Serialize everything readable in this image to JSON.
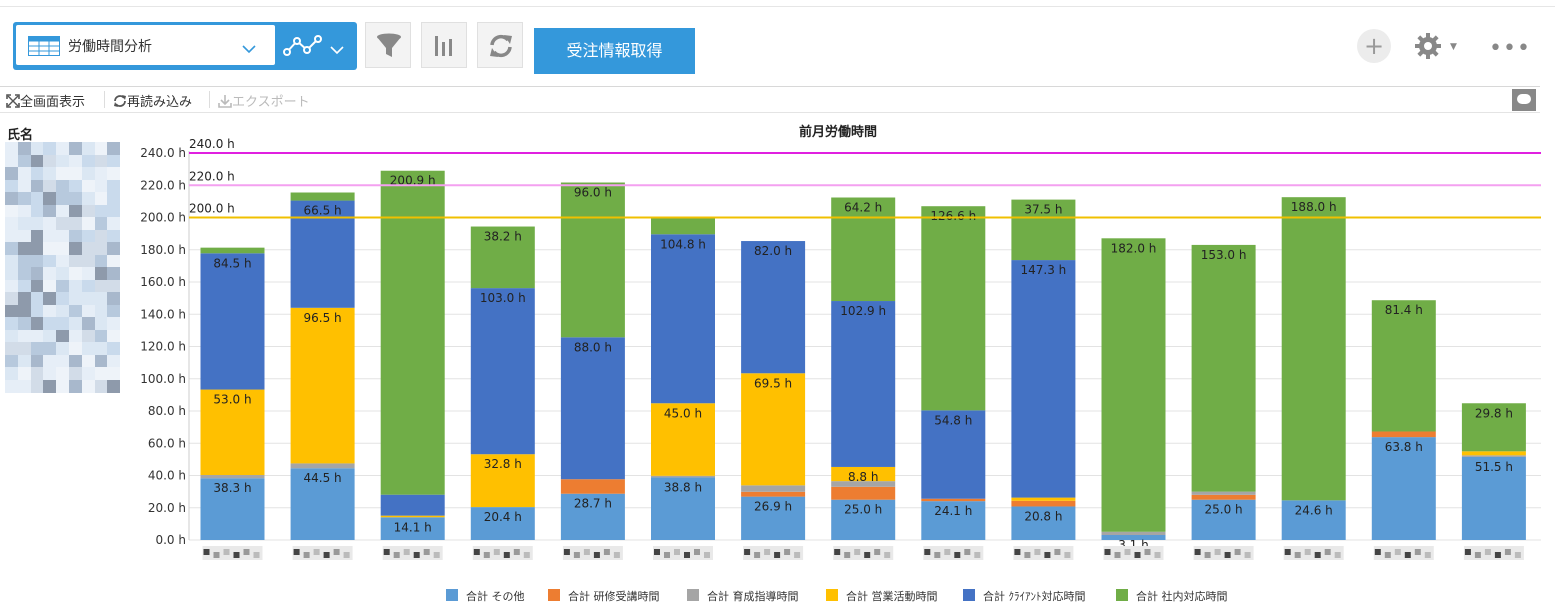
{
  "toolbar": {
    "view_name": "労働時間分析",
    "fetch_label": "受注情報取得",
    "plus_label": "+",
    "more_label": "•••"
  },
  "subbar": {
    "fullscreen_label": "全画面表示",
    "reload_label": "再読み込み",
    "export_label": "エクスポート"
  },
  "table": {
    "name_header": "氏名"
  },
  "colors": {
    "accent": "#3498db",
    "その他": "#5b9bd5",
    "研修受講時間": "#ed7d31",
    "育成指導時間": "#a5a5a5",
    "営業活動時間": "#ffc000",
    "クライアント対応時間": "#4472c4",
    "社内対応時間": "#70ad47",
    "line240": "#e020e0",
    "line220": "#f4a0f0",
    "line200": "#f0c000"
  },
  "chart_data": {
    "type": "bar",
    "stacked": true,
    "title": "前月労働時間",
    "ylim": [
      0,
      240
    ],
    "yticks": [
      "0.0 h",
      "20.0 h",
      "40.0 h",
      "60.0 h",
      "80.0 h",
      "100.0 h",
      "120.0 h",
      "140.0 h",
      "160.0 h",
      "180.0 h",
      "200.0 h",
      "220.0 h",
      "240.0 h"
    ],
    "grid": true,
    "legend_position": "bottom",
    "categories": [
      "",
      "",
      "",
      "",
      "",
      "",
      "",
      "",
      "",
      "",
      "",
      "",
      "",
      "",
      ""
    ],
    "series": [
      {
        "name": "合計 その他",
        "color": "#5b9bd5",
        "values": [
          38.3,
          44.5,
          14.1,
          20.4,
          28.7,
          38.8,
          26.9,
          25.0,
          24.1,
          20.8,
          3.1,
          25.0,
          24.6,
          63.8,
          51.5
        ],
        "labels": [
          "38.3 h",
          "44.5 h",
          "14.1 h",
          "20.4 h",
          "28.7 h",
          "38.8 h",
          "26.9 h",
          "25.0 h",
          "24.1 h",
          "20.8 h",
          "3.1 h",
          "25.0 h",
          "24.6 h",
          "63.8 h",
          "51.5 h"
        ]
      },
      {
        "name": "合計 研修受講時間",
        "color": "#ed7d31",
        "values": [
          0,
          0,
          0,
          0,
          9,
          0,
          3,
          8,
          1.5,
          3.5,
          0,
          3,
          0,
          3.5,
          0
        ],
        "labels": []
      },
      {
        "name": "合計 育成指導時間",
        "color": "#a5a5a5",
        "values": [
          2,
          3,
          0,
          0,
          0,
          1,
          4,
          3.5,
          0,
          0,
          2,
          2,
          0,
          0,
          1
        ],
        "labels": []
      },
      {
        "name": "合計 営業活動時間",
        "color": "#ffc000",
        "values": [
          53.0,
          96.5,
          1,
          32.8,
          0,
          45.0,
          69.5,
          8.8,
          0,
          2,
          0,
          0,
          0,
          0,
          2.5
        ],
        "labels": [
          "53.0 h",
          "96.5 h",
          "",
          "32.8 h",
          "",
          "45.0 h",
          "69.5 h",
          "8.8 h",
          "",
          "",
          "",
          "",
          "",
          "",
          ""
        ]
      },
      {
        "name": "合計 ｸﾗｲｱﾝﾄ対応時間",
        "color": "#4472c4",
        "values": [
          84.5,
          66.5,
          13,
          103.0,
          88.0,
          104.8,
          82.0,
          102.9,
          54.8,
          147.3,
          0,
          0,
          0,
          0,
          0
        ],
        "labels": [
          "84.5 h",
          "66.5 h",
          "",
          "103.0 h",
          "88.0 h",
          "104.8 h",
          "82.0 h",
          "102.9 h",
          "54.8 h",
          "147.3 h",
          "",
          "",
          "",
          "",
          ""
        ]
      },
      {
        "name": "合計 社内対応時間",
        "color": "#70ad47",
        "values": [
          3.5,
          5,
          200.9,
          38.2,
          96.0,
          10,
          0,
          64.2,
          126.6,
          37.5,
          182.0,
          153.0,
          188.0,
          81.4,
          29.8
        ],
        "labels": [
          "",
          "",
          "200.9 h",
          "38.2 h",
          "96.0 h",
          "",
          "",
          "64.2 h",
          "126.6 h",
          "37.5 h",
          "182.0 h",
          "153.0 h",
          "188.0 h",
          "81.4 h",
          "29.8 h"
        ]
      }
    ],
    "reference_lines": [
      {
        "value": 240,
        "label": "240.0 h",
        "color": "#e020e0"
      },
      {
        "value": 220,
        "label": "220.0 h",
        "color": "#f4a0f0"
      },
      {
        "value": 200,
        "label": "200.0 h",
        "color": "#f0c000"
      }
    ]
  }
}
